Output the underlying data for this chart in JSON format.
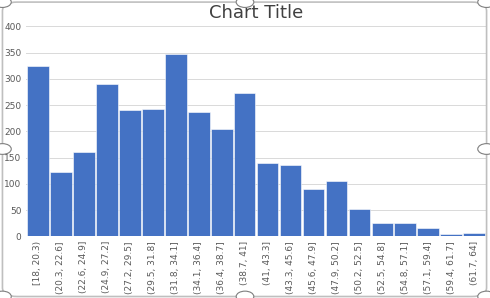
{
  "title": "Chart Title",
  "categories": [
    "[18, 20.3)",
    "(20.3, 22.6]",
    "(22.6, 24.9]",
    "(24.9, 27.2]",
    "(27.2, 29.5]",
    "(29.5, 31.8]",
    "(31.8, 34.1]",
    "(34.1, 36.4]",
    "(36.4, 38.7]",
    "(38.7, 41]",
    "(41, 43.3]",
    "(43.3, 45.6]",
    "(45.6, 47.9]",
    "(47.9, 50.2]",
    "(50.2, 52.5]",
    "(52.5, 54.8]",
    "(54.8, 57.1]",
    "(57.1, 59.4]",
    "(59.4, 61.7]",
    "(61.7, 64]"
  ],
  "values": [
    325,
    122,
    160,
    290,
    240,
    243,
    347,
    237,
    205,
    273,
    140,
    135,
    90,
    105,
    52,
    26,
    25,
    16,
    5,
    7
  ],
  "bar_color": "#4472C4",
  "bar_edge_color": "#ffffff",
  "ylim": [
    0,
    400
  ],
  "yticks": [
    0,
    50,
    100,
    150,
    200,
    250,
    300,
    350,
    400
  ],
  "title_fontsize": 13,
  "tick_fontsize": 6.5,
  "plot_bg_color": "#ffffff",
  "grid_color": "#d9d9d9",
  "outer_bg_color": "#ffffff",
  "border_color": "#bfbfbf",
  "handle_color": "#ffffff",
  "handle_edge_color": "#7f7f7f"
}
